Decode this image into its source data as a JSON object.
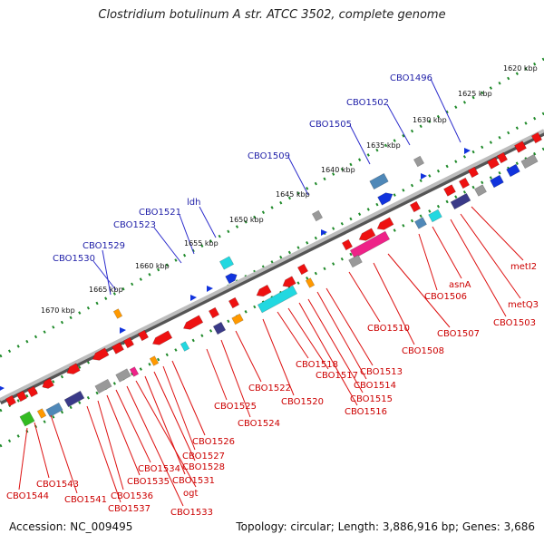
{
  "title": "Clostridium botulinum A str. ATCC 3502, complete genome",
  "footer": {
    "accession": "Accession: NC_009495",
    "topology": "Topology: circular; Length: 3,886,916 bp; Genes: 3,686"
  },
  "colors": {
    "backbone": "#8a8a8a",
    "dotted_guides": "#1f8a2a",
    "top_label": "#1f1fa8",
    "bottom_label": "#cc0000",
    "leader_top": "#2d2dcc",
    "leader_bottom": "#dd1111",
    "gene_red": "#ee1111",
    "gene_cyan": "#22d8e0",
    "gene_blue": "#1133dd",
    "gene_navy": "#3a3a88",
    "gene_pink": "#ee2288",
    "gene_gray": "#999999",
    "gene_orange": "#ff9900",
    "gene_steel": "#4f88b8",
    "gene_green": "#33bb22"
  },
  "kbp_ticks": [
    {
      "label": "1620 kbp"
    },
    {
      "label": "1625 kbp"
    },
    {
      "label": "1630 kbp"
    },
    {
      "label": "1635 kbp"
    },
    {
      "label": "1640 kbp"
    },
    {
      "label": "1645 kbp"
    },
    {
      "label": "1650 kbp"
    },
    {
      "label": "1655 kbp"
    },
    {
      "label": "1660 kbp"
    },
    {
      "label": "1665 kbp"
    },
    {
      "label": "1670 kbp"
    }
  ],
  "top_labels": [
    "CBO1496",
    "CBO1502",
    "CBO1505",
    "CBO1509",
    "ldh",
    "CBO1521",
    "CBO1523",
    "CBO1529",
    "CBO1530"
  ],
  "bottom_labels": [
    "metI2",
    "metQ3",
    "CBO1503",
    "asnA",
    "CBO1506",
    "CBO1507",
    "CBO1508",
    "CBO1510",
    "CBO1513",
    "CBO1514",
    "CBO1515",
    "CBO1516",
    "CBO1517",
    "CBO1518",
    "CBO1520",
    "CBO1522",
    "CBO1524",
    "CBO1525",
    "CBO1526",
    "CBO1527",
    "CBO1528",
    "CBO1531",
    "ogt",
    "CBO1533",
    "CBO1534",
    "CBO1535",
    "CBO1536",
    "CBO1537",
    "CBO1541",
    "CBO1543",
    "CBO1544"
  ]
}
